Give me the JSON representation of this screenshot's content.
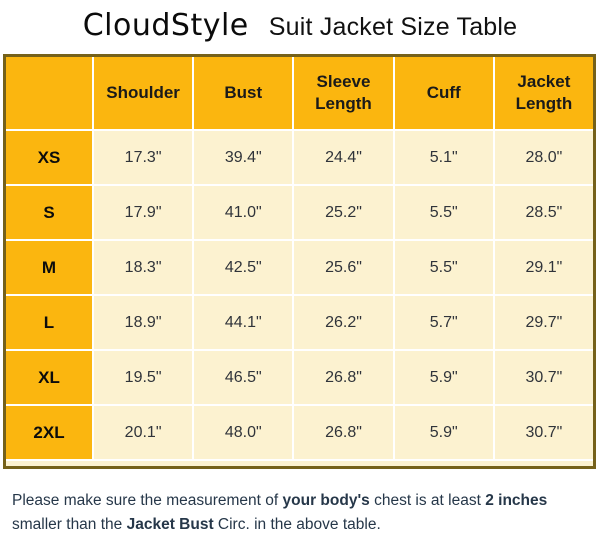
{
  "header": {
    "brand": "CloudStyle",
    "title": "Suit Jacket Size Table"
  },
  "table": {
    "columns": [
      "",
      "Shoulder",
      "Bust",
      "Sleeve Length",
      "Cuff",
      "Jacket Length"
    ],
    "rows": [
      {
        "size": "XS",
        "values": [
          "17.3\"",
          "39.4\"",
          "24.4\"",
          "5.1\"",
          "28.0\""
        ]
      },
      {
        "size": "S",
        "values": [
          "17.9\"",
          "41.0\"",
          "25.2\"",
          "5.5\"",
          "28.5\""
        ]
      },
      {
        "size": "M",
        "values": [
          "18.3\"",
          "42.5\"",
          "25.6\"",
          "5.5\"",
          "29.1\""
        ]
      },
      {
        "size": "L",
        "values": [
          "18.9\"",
          "44.1\"",
          "26.2\"",
          "5.7\"",
          "29.7\""
        ]
      },
      {
        "size": "XL",
        "values": [
          "19.5\"",
          "46.5\"",
          "26.8\"",
          "5.9\"",
          "30.7\""
        ]
      },
      {
        "size": "2XL",
        "values": [
          "20.1\"",
          "48.0\"",
          "26.8\"",
          "5.9\"",
          "30.7\""
        ]
      }
    ]
  },
  "note": {
    "segments": [
      {
        "text": "Please make sure the measurement of ",
        "bold": false
      },
      {
        "text": "your body's",
        "bold": true
      },
      {
        "text": " chest is at least ",
        "bold": false
      },
      {
        "text": "2 inches",
        "bold": true
      },
      {
        "text": " smaller than the ",
        "bold": false
      },
      {
        "text": "Jacket Bust",
        "bold": true
      },
      {
        "text": " Circ. in the above table.",
        "bold": false
      }
    ]
  },
  "colors": {
    "gold": "#fbb60f",
    "cream": "#fcf2d0",
    "table_border": "#75611a",
    "note_text": "#263749",
    "cell_text": "#30343a"
  }
}
